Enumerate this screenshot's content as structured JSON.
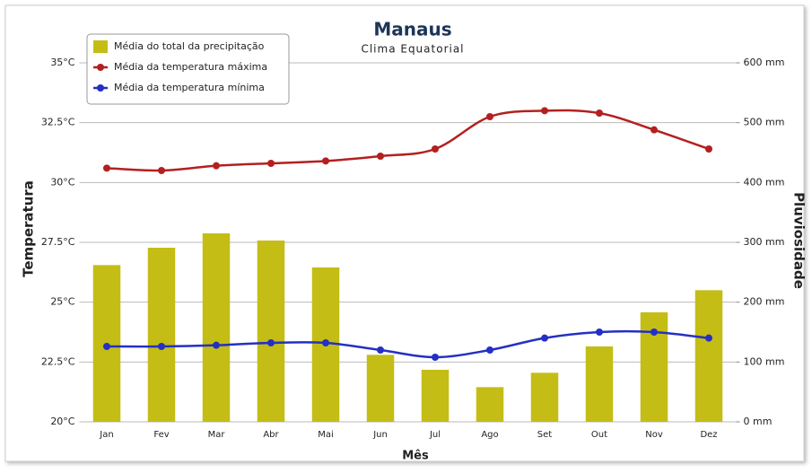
{
  "chart_data": {
    "type": "combo",
    "title": "Manaus",
    "subtitle": "Clima Equatorial",
    "y_label": "Temperatura",
    "y2_label": "Pluviosidade",
    "x_label": "Mês",
    "categories": [
      "Jan",
      "Fev",
      "Mar",
      "Abr",
      "Mai",
      "Jun",
      "Jul",
      "Ago",
      "Set",
      "Out",
      "Nov",
      "Dez"
    ],
    "series": [
      {
        "name": "Média do total da precipitação",
        "type": "bar",
        "axis": "y2",
        "color": "#c4bd16",
        "values": [
          262,
          291,
          315,
          303,
          258,
          112,
          87,
          58,
          82,
          126,
          183,
          220
        ]
      },
      {
        "name": "Média da temperatura máxima",
        "type": "line",
        "color": "#b3201f",
        "values": [
          30.6,
          30.5,
          30.7,
          30.8,
          30.9,
          31.1,
          31.4,
          32.75,
          33.0,
          32.9,
          32.2,
          31.4
        ]
      },
      {
        "name": "Média da temperatura mínima",
        "type": "line",
        "color": "#2430c4",
        "values": [
          23.15,
          23.15,
          23.2,
          23.3,
          23.3,
          23.0,
          22.7,
          23.0,
          23.5,
          23.75,
          23.75,
          23.5
        ]
      }
    ],
    "ylim": [
      20,
      35
    ],
    "yticks": [
      {
        "value": 20,
        "label": "20°C"
      },
      {
        "value": 22.5,
        "label": "22.5°C"
      },
      {
        "value": 25,
        "label": "25°C"
      },
      {
        "value": 27.5,
        "label": "27.5°C"
      },
      {
        "value": 30,
        "label": "30°C"
      },
      {
        "value": 32.5,
        "label": "32.5°C"
      },
      {
        "value": 35,
        "label": "35°C"
      }
    ],
    "y2lim": [
      0,
      600
    ],
    "y2ticks": [
      {
        "value": 0,
        "label": "0 mm"
      },
      {
        "value": 100,
        "label": "100 mm"
      },
      {
        "value": 200,
        "label": "200 mm"
      },
      {
        "value": 300,
        "label": "300 mm"
      },
      {
        "value": 400,
        "label": "400 mm"
      },
      {
        "value": 500,
        "label": "500 mm"
      },
      {
        "value": 600,
        "label": "600 mm"
      }
    ],
    "grid": true,
    "legend": "top-left"
  }
}
